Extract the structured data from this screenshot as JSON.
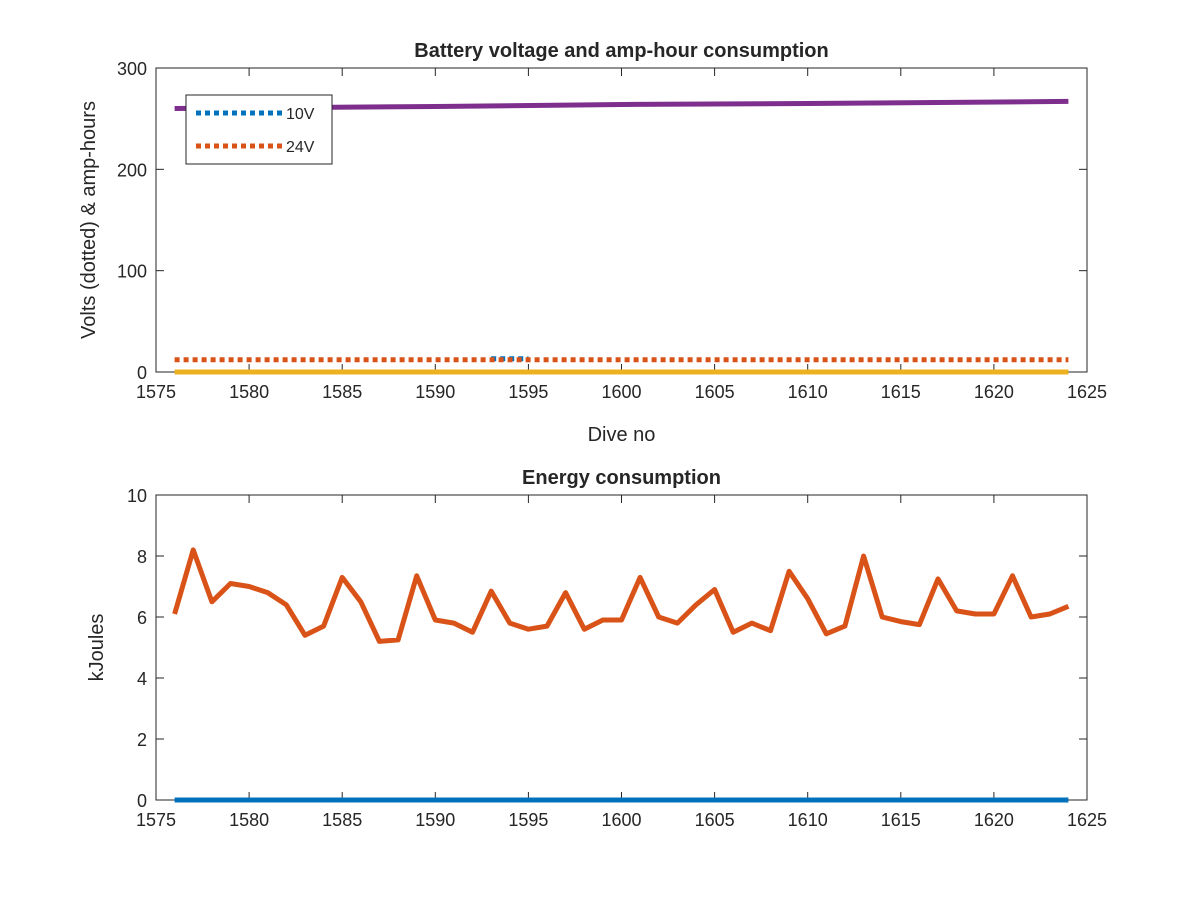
{
  "chart_data": [
    {
      "type": "line",
      "title": "Battery voltage and amp-hour consumption",
      "xlabel": "Dive no",
      "ylabel": "Volts (dotted) & amp-hours",
      "xlim": [
        1575,
        1625
      ],
      "ylim": [
        0,
        300
      ],
      "xticks": [
        1575,
        1580,
        1585,
        1590,
        1595,
        1600,
        1605,
        1610,
        1615,
        1620,
        1625
      ],
      "yticks": [
        0,
        100,
        200,
        300
      ],
      "legend_position": "top-left",
      "series": [
        {
          "name": "10V",
          "style": "dotted",
          "color": "#0072BD",
          "x": [
            1593,
            1595
          ],
          "y": [
            13,
            13
          ]
        },
        {
          "name": "24V",
          "style": "dotted",
          "color": "#D95319",
          "x": [
            1576,
            1624
          ],
          "y": [
            12,
            12
          ]
        },
        {
          "style": "solid",
          "color": "#EDB120",
          "x": [
            1576,
            1624
          ],
          "y": [
            0,
            0
          ]
        },
        {
          "style": "solid",
          "color": "#7E2F8E",
          "x": [
            1576,
            1590,
            1600,
            1610,
            1624
          ],
          "y": [
            260,
            262,
            264,
            265,
            267
          ]
        }
      ]
    },
    {
      "type": "line",
      "title": "Energy consumption",
      "xlabel": "",
      "ylabel": "kJoules",
      "xlim": [
        1575,
        1625
      ],
      "ylim": [
        0,
        10
      ],
      "xticks": [
        1575,
        1580,
        1585,
        1590,
        1595,
        1600,
        1605,
        1610,
        1615,
        1620,
        1625
      ],
      "yticks": [
        0,
        2,
        4,
        6,
        8,
        10
      ],
      "series": [
        {
          "style": "solid",
          "color": "#0072BD",
          "x": [
            1576,
            1624
          ],
          "y": [
            0,
            0
          ]
        },
        {
          "style": "solid",
          "color": "#D95319",
          "x": [
            1576,
            1577,
            1578,
            1579,
            1580,
            1581,
            1582,
            1583,
            1584,
            1585,
            1586,
            1587,
            1588,
            1589,
            1590,
            1591,
            1592,
            1593,
            1594,
            1595,
            1596,
            1597,
            1598,
            1599,
            1600,
            1601,
            1602,
            1603,
            1604,
            1605,
            1606,
            1607,
            1608,
            1609,
            1610,
            1611,
            1612,
            1613,
            1614,
            1615,
            1616,
            1617,
            1618,
            1619,
            1620,
            1621,
            1622,
            1623,
            1624
          ],
          "y": [
            6.1,
            8.2,
            6.5,
            7.1,
            7.0,
            6.8,
            6.4,
            5.4,
            5.7,
            7.3,
            6.5,
            5.2,
            5.25,
            7.35,
            5.9,
            5.8,
            5.5,
            6.85,
            5.8,
            5.6,
            5.7,
            6.8,
            5.6,
            5.9,
            5.9,
            7.3,
            6.0,
            5.8,
            6.4,
            6.9,
            5.5,
            5.8,
            5.55,
            7.5,
            6.6,
            5.45,
            5.7,
            8.0,
            6.0,
            5.85,
            5.75,
            7.25,
            6.2,
            6.1,
            6.1,
            7.35,
            6.0,
            6.1,
            6.35
          ]
        }
      ]
    }
  ]
}
